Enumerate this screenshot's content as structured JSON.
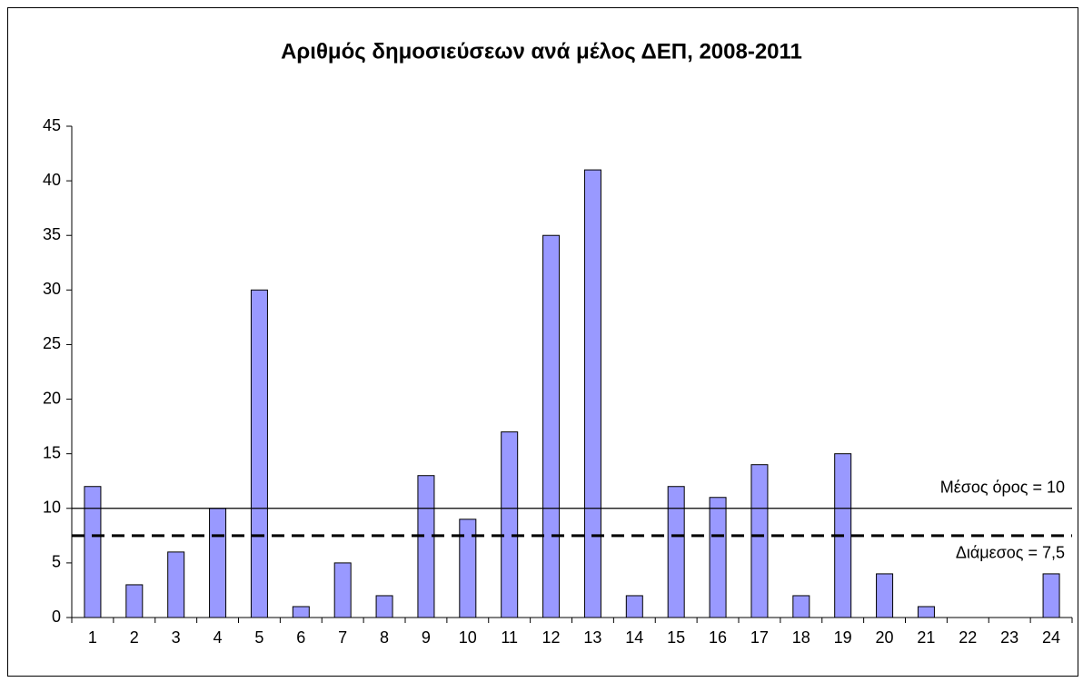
{
  "chart_data": {
    "type": "bar",
    "title": "Αριθμός δημοσιεύσεων ανά μέλος ΔΕΠ, 2008-2011",
    "categories": [
      "1",
      "2",
      "3",
      "4",
      "5",
      "6",
      "7",
      "8",
      "9",
      "10",
      "11",
      "12",
      "13",
      "14",
      "15",
      "16",
      "17",
      "18",
      "19",
      "20",
      "21",
      "22",
      "23",
      "24"
    ],
    "values": [
      12,
      3,
      6,
      10,
      30,
      1,
      5,
      2,
      13,
      9,
      17,
      35,
      41,
      2,
      12,
      11,
      14,
      2,
      15,
      4,
      1,
      0,
      0,
      4
    ],
    "color": "#9999ff",
    "ylim": [
      0,
      45
    ],
    "yticks": [
      0,
      5,
      10,
      15,
      20,
      25,
      30,
      35,
      40,
      45
    ],
    "grid": false,
    "reference_lines": [
      {
        "value": 10,
        "label": "Μέσος όρος = 10",
        "style": "solid"
      },
      {
        "value": 7.5,
        "label": "Διάμεσος = 7,5",
        "style": "dashed"
      }
    ]
  }
}
